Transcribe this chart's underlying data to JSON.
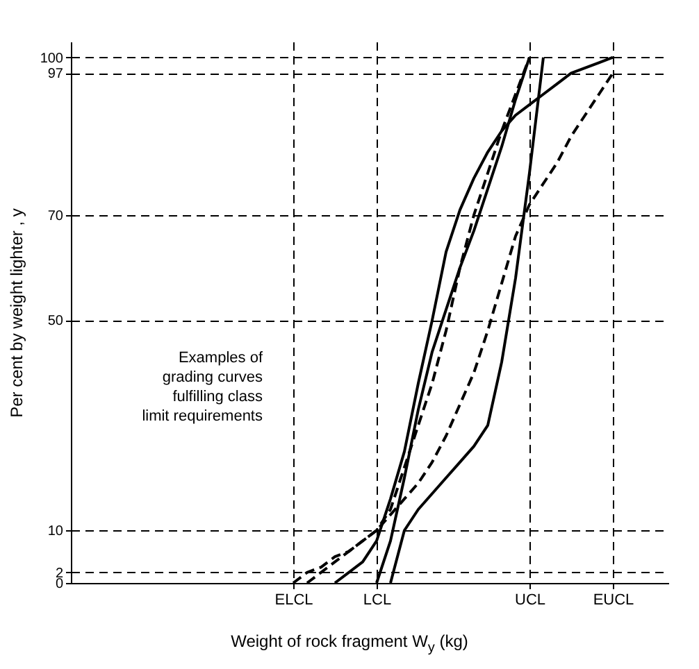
{
  "chart_data": {
    "type": "line",
    "xlabel": "Weight of rock fragment W$_{y}$ (kg)",
    "ylabel": "Per cent by weight lighter , y",
    "categories": [
      null,
      null,
      null,
      null,
      null,
      null,
      null,
      null,
      null,
      null,
      null,
      null,
      null,
      null,
      null,
      null,
      "ELCL",
      null,
      null,
      null,
      null,
      null,
      "LCL",
      null,
      null,
      null,
      null,
      null,
      null,
      null,
      null,
      null,
      null,
      "UCL",
      null,
      null,
      null,
      null,
      null,
      "EUCL",
      null,
      null,
      null,
      null
    ],
    "ylim": [
      0,
      103
    ],
    "yticks": [
      0,
      2,
      10,
      50,
      70,
      97,
      100
    ],
    "grid": true,
    "series": [
      {
        "color": "#000000",
        "line_style": "dashed",
        "values": [
          null,
          null,
          null,
          null,
          null,
          null,
          null,
          null,
          null,
          null,
          null,
          null,
          null,
          null,
          null,
          null,
          0,
          2,
          3,
          5,
          6,
          8,
          10,
          14,
          22,
          30,
          38,
          48,
          60,
          70,
          78,
          86,
          93,
          100,
          null,
          null,
          null,
          null,
          null,
          null,
          null,
          null,
          null,
          null
        ]
      },
      {
        "color": "#000000",
        "line_style": "dashed",
        "values": [
          null,
          null,
          null,
          null,
          null,
          null,
          null,
          null,
          null,
          null,
          null,
          null,
          null,
          null,
          null,
          null,
          null,
          0,
          2,
          4,
          6,
          8,
          10,
          13,
          16,
          19,
          23,
          28,
          34,
          40,
          48,
          57,
          66,
          72,
          76,
          80,
          85,
          89,
          93,
          97,
          null,
          null,
          null,
          null
        ]
      },
      {
        "color": "#000000",
        "line_style": "solid",
        "values": [
          null,
          null,
          null,
          null,
          null,
          null,
          null,
          null,
          null,
          null,
          null,
          null,
          null,
          null,
          null,
          null,
          null,
          null,
          null,
          0,
          2,
          4,
          8,
          16,
          25,
          38,
          50,
          63,
          71,
          77,
          82,
          86,
          89,
          91,
          93,
          95,
          97,
          98,
          99,
          100,
          null,
          null,
          null,
          null
        ]
      },
      {
        "color": "#000000",
        "line_style": "solid",
        "values": [
          null,
          null,
          null,
          null,
          null,
          null,
          null,
          null,
          null,
          null,
          null,
          null,
          null,
          null,
          null,
          null,
          null,
          null,
          null,
          null,
          null,
          null,
          0,
          8,
          20,
          33,
          44,
          52,
          60,
          67,
          75,
          83,
          92,
          100,
          null,
          null,
          null,
          null,
          null,
          null,
          null,
          null,
          null,
          null
        ]
      },
      {
        "color": "#000000",
        "line_style": "solid",
        "values": [
          null,
          null,
          null,
          null,
          null,
          null,
          null,
          null,
          null,
          null,
          null,
          null,
          null,
          null,
          null,
          null,
          null,
          null,
          null,
          null,
          null,
          null,
          null,
          0,
          10,
          14,
          17,
          20,
          23,
          26,
          30,
          42,
          58,
          78,
          100,
          null,
          null,
          null,
          null,
          null,
          null,
          null,
          null,
          null
        ]
      }
    ],
    "annotations": [
      "Examples of grading curves fulfilling class limit requirements"
    ]
  }
}
